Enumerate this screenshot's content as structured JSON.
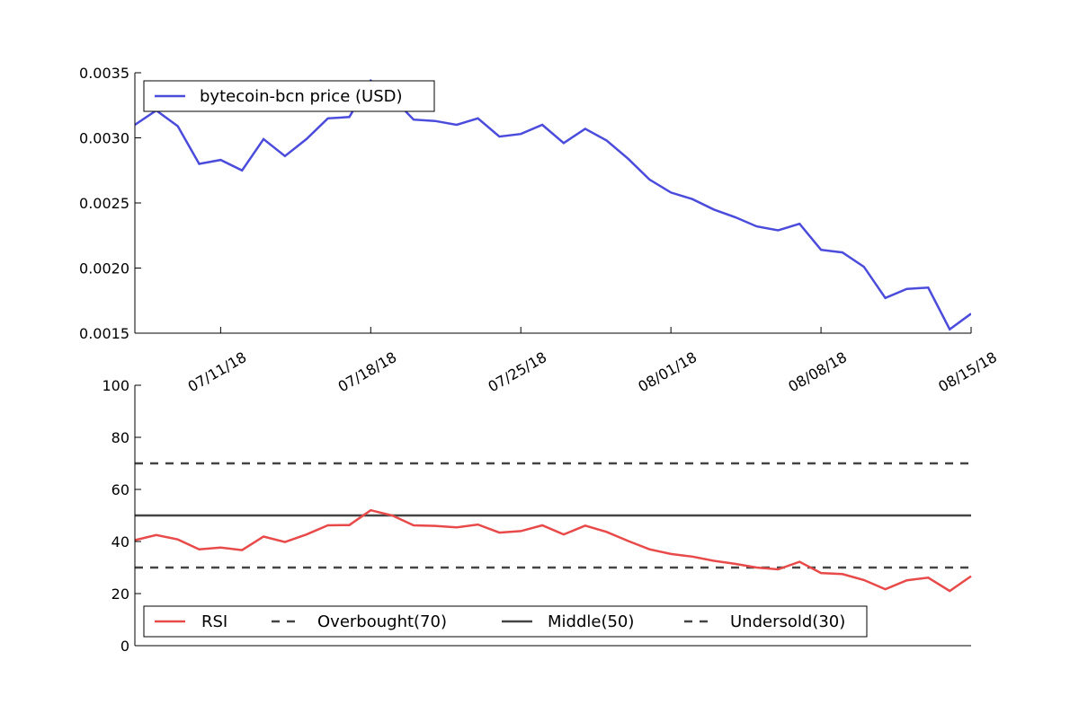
{
  "chart_data": [
    {
      "type": "line",
      "title": "",
      "xlabel": "",
      "ylabel": "",
      "ylim": [
        0.0015,
        0.0035
      ],
      "xlim": [
        "2018-07-07",
        "2018-08-15"
      ],
      "yticks": [
        "0.0015",
        "0.0020",
        "0.0025",
        "0.0030",
        "0.0035"
      ],
      "xticks": [
        "07/11/18",
        "07/18/18",
        "07/25/18",
        "08/01/18",
        "08/08/18",
        "08/15/18"
      ],
      "grid": false,
      "legend_position": "top-left",
      "x": [
        "2018-07-07",
        "2018-07-08",
        "2018-07-09",
        "2018-07-10",
        "2018-07-11",
        "2018-07-12",
        "2018-07-13",
        "2018-07-14",
        "2018-07-15",
        "2018-07-16",
        "2018-07-17",
        "2018-07-18",
        "2018-07-19",
        "2018-07-20",
        "2018-07-21",
        "2018-07-22",
        "2018-07-23",
        "2018-07-24",
        "2018-07-25",
        "2018-07-26",
        "2018-07-27",
        "2018-07-28",
        "2018-07-29",
        "2018-07-30",
        "2018-07-31",
        "2018-08-01",
        "2018-08-02",
        "2018-08-03",
        "2018-08-04",
        "2018-08-05",
        "2018-08-06",
        "2018-08-07",
        "2018-08-08",
        "2018-08-09",
        "2018-08-10",
        "2018-08-11",
        "2018-08-12",
        "2018-08-13",
        "2018-08-14",
        "2018-08-15"
      ],
      "series": [
        {
          "name": "bytecoin-bcn price (USD)",
          "color": "#4b4bdc",
          "values": [
            0.0031,
            0.00321,
            0.00309,
            0.0028,
            0.00283,
            0.00275,
            0.00299,
            0.00286,
            0.00299,
            0.00315,
            0.00316,
            0.00344,
            0.00331,
            0.00314,
            0.00313,
            0.0031,
            0.00315,
            0.00301,
            0.00303,
            0.0031,
            0.00296,
            0.00307,
            0.00298,
            0.00284,
            0.00268,
            0.00258,
            0.00253,
            0.00245,
            0.00239,
            0.00232,
            0.00229,
            0.00234,
            0.00214,
            0.00212,
            0.00201,
            0.00177,
            0.00184,
            0.00185,
            0.00153,
            0.00165
          ]
        }
      ]
    },
    {
      "type": "line",
      "title": "",
      "xlabel": "",
      "ylabel": "",
      "ylim": [
        0,
        100
      ],
      "yticks": [
        "0",
        "20",
        "40",
        "60",
        "80",
        "100"
      ],
      "grid": false,
      "legend_position": "bottom-left",
      "series": [
        {
          "name": "RSI",
          "color": "#e84a4a",
          "style": "solid",
          "values": [
            40.5,
            42.5,
            40.8,
            37.0,
            37.7,
            36.7,
            41.9,
            39.8,
            42.7,
            46.2,
            46.3,
            52.0,
            50.0,
            46.2,
            46.0,
            45.4,
            46.5,
            43.4,
            44.0,
            46.2,
            42.7,
            46.1,
            43.7,
            40.2,
            37.0,
            35.2,
            34.2,
            32.6,
            31.4,
            30.0,
            29.3,
            32.2,
            27.9,
            27.5,
            25.2,
            21.7,
            25.1,
            26.1,
            21.0,
            26.7
          ]
        },
        {
          "name": "Overbought(70)",
          "color": "#444444",
          "style": "dashed",
          "constant": 70
        },
        {
          "name": "Middle(50)",
          "color": "#444444",
          "style": "solid",
          "constant": 50
        },
        {
          "name": "Undersold(30)",
          "color": "#444444",
          "style": "dashed",
          "constant": 30
        }
      ]
    }
  ]
}
